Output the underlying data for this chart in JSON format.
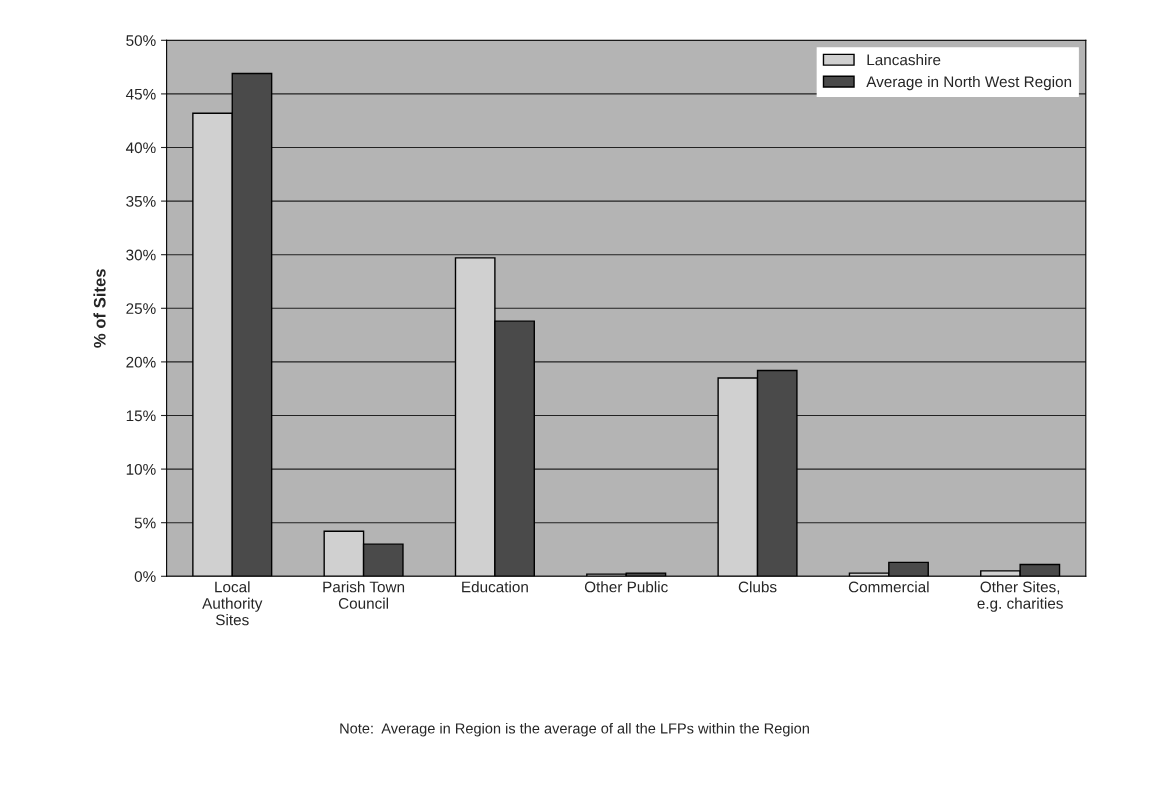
{
  "chart_data": {
    "type": "bar",
    "categories": [
      "Local\nAuthority\nSites",
      "Parish Town\nCouncil",
      "Education",
      "Other Public",
      "Clubs",
      "Commercial",
      "Other Sites,\ne.g. charities"
    ],
    "series": [
      {
        "name": "Lancashire",
        "color": "#d0d0d0",
        "values": [
          43.2,
          4.2,
          29.7,
          0.2,
          18.5,
          0.3,
          0.5
        ]
      },
      {
        "name": "Average in North West Region",
        "color": "#4a4a4a",
        "values": [
          46.9,
          3.0,
          23.8,
          0.3,
          19.2,
          1.3,
          1.1
        ]
      }
    ],
    "ylabel": "% of Sites",
    "ylim": [
      0,
      50
    ],
    "yticks": [
      {
        "value": 0,
        "label": "0%"
      },
      {
        "value": 5,
        "label": "5%"
      },
      {
        "value": 10,
        "label": "10%"
      },
      {
        "value": 15,
        "label": "15%"
      },
      {
        "value": 20,
        "label": "20%"
      },
      {
        "value": 25,
        "label": "25%"
      },
      {
        "value": 30,
        "label": "30%"
      },
      {
        "value": 35,
        "label": "35%"
      },
      {
        "value": 40,
        "label": "40%"
      },
      {
        "value": 45,
        "label": "45%"
      },
      {
        "value": 50,
        "label": "50%"
      }
    ],
    "grid": "y",
    "legend": "top right",
    "annotations": [
      "Note:  Average in Region is the average of all the LFPs within the Region"
    ]
  }
}
